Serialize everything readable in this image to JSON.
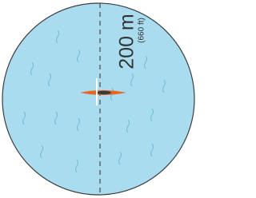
{
  "distance": {
    "label": "200 m",
    "sublabel": "(660 ft)"
  }
}
